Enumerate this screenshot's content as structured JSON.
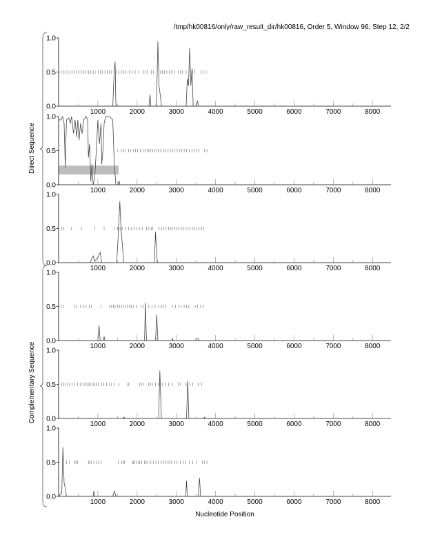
{
  "chart_data": {
    "type": "line",
    "title": "/tmp/hk00816/only/raw_result_dir/hk00816, Order 5, Window 96, Step 12, 2/2",
    "xlabel": "Nucleotide Position",
    "xlim": [
      0,
      8470
    ],
    "ylim": [
      0,
      1
    ],
    "x_ticks": [
      1000,
      2000,
      3000,
      4000,
      5000,
      6000,
      7000,
      8000
    ],
    "y_ticks": [
      "0.0",
      "0.5",
      "1.0"
    ],
    "groups": [
      {
        "label": "Direct Sequence",
        "panels": [
          0,
          1,
          2
        ]
      },
      {
        "label": "Complementary Sequence",
        "panels": [
          3,
          4,
          5
        ]
      }
    ],
    "panels": [
      {
        "name": "direct-frame-1",
        "points": [
          [
            0,
            0
          ],
          [
            1380,
            0
          ],
          [
            1420,
            0.55
          ],
          [
            1440,
            0.65
          ],
          [
            1460,
            0
          ],
          [
            2300,
            0
          ],
          [
            2330,
            0.17
          ],
          [
            2350,
            0
          ],
          [
            2480,
            0
          ],
          [
            2500,
            0.15
          ],
          [
            2530,
            0.95
          ],
          [
            2560,
            0.3
          ],
          [
            2600,
            0.12
          ],
          [
            2620,
            0
          ],
          [
            3250,
            0
          ],
          [
            3280,
            0.4
          ],
          [
            3310,
            0.3
          ],
          [
            3340,
            0.85
          ],
          [
            3370,
            0.3
          ],
          [
            3400,
            0.55
          ],
          [
            3430,
            0
          ],
          [
            3500,
            0
          ],
          [
            3540,
            0.08
          ],
          [
            3560,
            0
          ],
          [
            8470,
            0
          ]
        ],
        "stop_codons": [
          60,
          120,
          180,
          230,
          290,
          340,
          400,
          450,
          520,
          580,
          640,
          700,
          760,
          820,
          880,
          930,
          1010,
          1060,
          1120,
          1180,
          1240,
          1290,
          1350,
          1470,
          1530,
          1600,
          1660,
          1720,
          1800,
          1870,
          1950,
          2050,
          2150,
          2210,
          2270,
          2360,
          2420,
          2600,
          2640,
          2700,
          2760,
          2820,
          2880,
          2950,
          3050,
          3110,
          3160,
          3250,
          3410,
          3470,
          3630,
          3680,
          3760
        ]
      },
      {
        "name": "direct-frame-2",
        "points": [
          [
            0,
            0.95
          ],
          [
            60,
            0.95
          ],
          [
            100,
            1
          ],
          [
            140,
            0.9
          ],
          [
            170,
            0.25
          ],
          [
            200,
            0.95
          ],
          [
            260,
            0.98
          ],
          [
            300,
            0.9
          ],
          [
            330,
            1
          ],
          [
            380,
            0.75
          ],
          [
            420,
            0.95
          ],
          [
            460,
            0.7
          ],
          [
            490,
            0.95
          ],
          [
            520,
            0.65
          ],
          [
            560,
            0.9
          ],
          [
            600,
            0.75
          ],
          [
            640,
            0.95
          ],
          [
            700,
            1
          ],
          [
            740,
            0.95
          ],
          [
            760,
            0.4
          ],
          [
            790,
            0.6
          ],
          [
            820,
            0.05
          ],
          [
            850,
            0.3
          ],
          [
            880,
            0
          ],
          [
            920,
            0.1
          ],
          [
            960,
            0.5
          ],
          [
            1000,
            0.95
          ],
          [
            1040,
            0.6
          ],
          [
            1080,
            0.9
          ],
          [
            1100,
            0.3
          ],
          [
            1130,
            0.5
          ],
          [
            1160,
            0.9
          ],
          [
            1200,
            1
          ],
          [
            1300,
            1
          ],
          [
            1380,
            0.95
          ],
          [
            1420,
            0.3
          ],
          [
            1460,
            0
          ],
          [
            1520,
            0
          ],
          [
            1540,
            0.06
          ],
          [
            1560,
            0
          ],
          [
            8470,
            0
          ]
        ],
        "stop_codons": [
          1510,
          1600,
          1660,
          1700,
          1780,
          1830,
          1900,
          1960,
          2010,
          2080,
          2150,
          2200,
          2260,
          2300,
          2350,
          2400,
          2450,
          2500,
          2540,
          2600,
          2680,
          2730,
          2790,
          2850,
          2900,
          2960,
          3020,
          3080,
          3140,
          3200,
          3260,
          3330,
          3400,
          3460,
          3520,
          3580,
          3720,
          3780
        ],
        "highlight": {
          "x": [
            0,
            1530
          ],
          "y": [
            0.15,
            0.28
          ]
        }
      },
      {
        "name": "direct-frame-3",
        "points": [
          [
            0,
            0
          ],
          [
            800,
            0
          ],
          [
            880,
            0.1
          ],
          [
            920,
            0.02
          ],
          [
            1000,
            0.08
          ],
          [
            1060,
            0.15
          ],
          [
            1100,
            0
          ],
          [
            1480,
            0
          ],
          [
            1520,
            0.4
          ],
          [
            1560,
            0.9
          ],
          [
            1590,
            0.5
          ],
          [
            1620,
            0.3
          ],
          [
            1660,
            0
          ],
          [
            2440,
            0
          ],
          [
            2470,
            0.45
          ],
          [
            2500,
            0.1
          ],
          [
            2520,
            0
          ],
          [
            8470,
            0
          ]
        ],
        "stop_codons": [
          80,
          130,
          330,
          580,
          920,
          1160,
          1420,
          1500,
          1540,
          1580,
          1620,
          1700,
          1780,
          1850,
          1920,
          1990,
          2060,
          2130,
          2240,
          2300,
          2360,
          2400,
          2560,
          2620,
          2680,
          2740,
          2800,
          2860,
          2900,
          2960,
          3020,
          3070,
          3130,
          3180,
          3240,
          3300,
          3350,
          3410,
          3470,
          3520,
          3580,
          3640,
          3690
        ]
      },
      {
        "name": "complementary-frame-1",
        "points": [
          [
            0,
            0
          ],
          [
            1000,
            0
          ],
          [
            1030,
            0.22
          ],
          [
            1060,
            0
          ],
          [
            1140,
            0
          ],
          [
            1160,
            0.06
          ],
          [
            1180,
            0
          ],
          [
            2190,
            0
          ],
          [
            2210,
            0.55
          ],
          [
            2240,
            0
          ],
          [
            2470,
            0
          ],
          [
            2500,
            0.38
          ],
          [
            2530,
            0
          ],
          [
            2880,
            0
          ],
          [
            2900,
            0.03
          ],
          [
            2920,
            0
          ],
          [
            3480,
            0
          ],
          [
            3520,
            0.03
          ],
          [
            3560,
            0.03
          ],
          [
            3580,
            0
          ],
          [
            8470,
            0
          ]
        ],
        "stop_codons": [
          60,
          120,
          400,
          460,
          560,
          640,
          700,
          780,
          840,
          1080,
          1300,
          1350,
          1400,
          1440,
          1500,
          1550,
          1600,
          1650,
          1700,
          1750,
          1800,
          1850,
          1900,
          1980,
          2100,
          2160,
          2300,
          2380,
          2460,
          2560,
          2620,
          2660,
          2720,
          2900,
          2980,
          3060,
          3120,
          3200,
          3260,
          3320,
          3480,
          3540,
          3620,
          3680
        ]
      },
      {
        "name": "complementary-frame-2",
        "points": [
          [
            0,
            0
          ],
          [
            1650,
            0
          ],
          [
            1670,
            0.02
          ],
          [
            1690,
            0
          ],
          [
            2550,
            0
          ],
          [
            2580,
            0.7
          ],
          [
            2620,
            0
          ],
          [
            3260,
            0
          ],
          [
            3290,
            0.55
          ],
          [
            3320,
            0
          ],
          [
            3700,
            0
          ],
          [
            3720,
            0.02
          ],
          [
            3740,
            0
          ],
          [
            8470,
            0
          ]
        ],
        "stop_codons": [
          80,
          130,
          180,
          240,
          280,
          340,
          400,
          480,
          550,
          620,
          670,
          720,
          770,
          820,
          880,
          920,
          960,
          1010,
          1100,
          1150,
          1220,
          1300,
          1350,
          1420,
          1540,
          1760,
          1790,
          2060,
          2110,
          2160,
          2290,
          2340,
          2390,
          2470,
          2550,
          2650,
          2720,
          2800,
          2890,
          3050,
          3110,
          3250,
          3350,
          3420,
          3560,
          3640
        ]
      },
      {
        "name": "complementary-frame-3",
        "points": [
          [
            0,
            0
          ],
          [
            80,
            0.05
          ],
          [
            110,
            0.72
          ],
          [
            140,
            0.2
          ],
          [
            170,
            0.12
          ],
          [
            200,
            0
          ],
          [
            880,
            0
          ],
          [
            900,
            0.08
          ],
          [
            920,
            0
          ],
          [
            1380,
            0
          ],
          [
            1420,
            0.08
          ],
          [
            1460,
            0
          ],
          [
            3240,
            0
          ],
          [
            3260,
            0.23
          ],
          [
            3280,
            0
          ],
          [
            3560,
            0
          ],
          [
            3590,
            0.27
          ],
          [
            3620,
            0
          ],
          [
            8470,
            0
          ]
        ],
        "stop_codons": [
          200,
          280,
          400,
          440,
          480,
          760,
          790,
          830,
          900,
          960,
          1020,
          1080,
          1520,
          1600,
          1640,
          1680,
          1880,
          1910,
          1940,
          1990,
          2040,
          2070,
          2120,
          2190,
          2230,
          2280,
          2350,
          2420,
          2480,
          2540,
          2620,
          2680,
          2730,
          2790,
          2830,
          2880,
          2960,
          3020,
          3100,
          3170,
          3230,
          3330,
          3420,
          3520,
          3660,
          3720,
          3780
        ]
      }
    ],
    "colors": {
      "line": "#444444",
      "highlight": "#bdbdbd",
      "stop": "#777777",
      "axis": "#000000"
    }
  }
}
